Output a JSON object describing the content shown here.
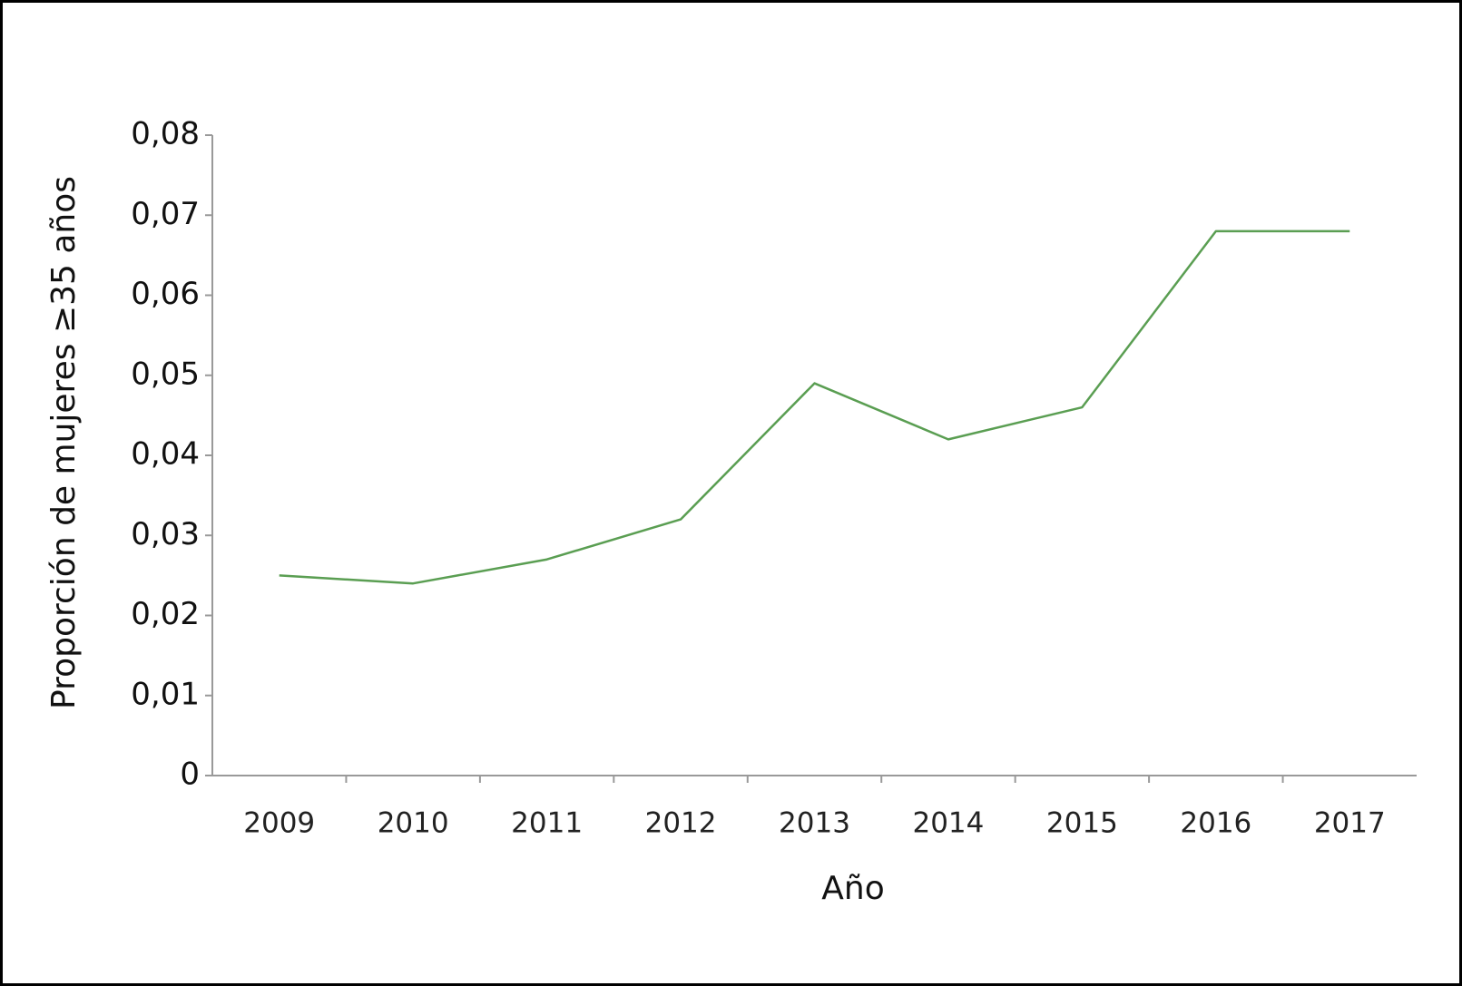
{
  "chart_data": {
    "type": "line",
    "xlabel": "Año",
    "ylabel": "Proporción de mujeres ≥35 años",
    "categories": [
      "2009",
      "2010",
      "2011",
      "2012",
      "2013",
      "2014",
      "2015",
      "2016",
      "2017"
    ],
    "series": [
      {
        "color": "#5a9e52",
        "values": [
          0.025,
          0.024,
          0.027,
          0.032,
          0.049,
          0.042,
          0.046,
          0.068,
          0.068
        ]
      }
    ],
    "ylim": [
      0,
      0.08
    ],
    "yticks": [
      0,
      {
        "value": 0.01,
        "label": "0,01"
      },
      {
        "value": 0.02,
        "label": "0,02"
      },
      {
        "value": 0.03,
        "label": "0,03"
      },
      {
        "value": 0.04,
        "label": "0,04"
      },
      {
        "value": 0.05,
        "label": "0,05"
      },
      {
        "value": 0.06,
        "label": "0,06"
      },
      {
        "value": 0.07,
        "label": "0,07"
      },
      {
        "value": 0.08,
        "label": "0,08"
      }
    ],
    "grid": false
  }
}
